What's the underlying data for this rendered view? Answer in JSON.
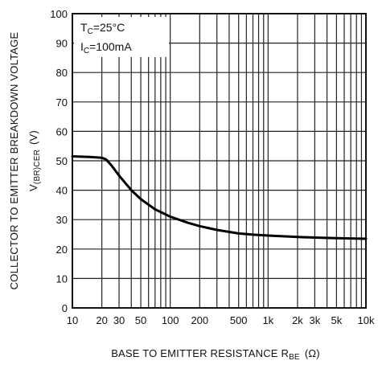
{
  "chart_data": {
    "type": "line",
    "x_scale": "log",
    "ylim": [
      0,
      100
    ],
    "xlim": [
      10,
      10000
    ],
    "grid": true,
    "xticks": [
      {
        "value": 10,
        "label": "10"
      },
      {
        "value": 20,
        "label": "20"
      },
      {
        "value": 30,
        "label": "30"
      },
      {
        "value": 50,
        "label": "50"
      },
      {
        "value": 100,
        "label": "100"
      },
      {
        "value": 200,
        "label": "200"
      },
      {
        "value": 500,
        "label": "500"
      },
      {
        "value": 1000,
        "label": "1k"
      },
      {
        "value": 2000,
        "label": "2k"
      },
      {
        "value": 3000,
        "label": "3k"
      },
      {
        "value": 5000,
        "label": "5k"
      },
      {
        "value": 10000,
        "label": "10k"
      }
    ],
    "x_grid": [
      10,
      20,
      30,
      40,
      50,
      60,
      70,
      80,
      90,
      100,
      200,
      300,
      400,
      500,
      600,
      700,
      800,
      900,
      1000,
      2000,
      3000,
      4000,
      5000,
      6000,
      7000,
      8000,
      9000,
      10000
    ],
    "yticks": [
      0,
      10,
      20,
      30,
      40,
      50,
      60,
      70,
      80,
      90,
      100
    ],
    "xlabel": "BASE TO EMITTER RESISTANCE R",
    "xlabel_sub": "BE",
    "xlabel_unit": "(Ω)",
    "ylabel_line1": "COLLECTOR TO EMITTER BREAKDOWN VOLTAGE",
    "ylabel_line2_main": "V",
    "ylabel_line2_sub": "(BR)CER",
    "ylabel_line2_unit": "(V)",
    "annotations": [
      {
        "main": "T",
        "sub": "C",
        "rest": "=25°C"
      },
      {
        "main": "I",
        "sub": "C",
        "rest": "=100mA"
      }
    ],
    "series": [
      {
        "x": [
          10,
          15,
          20,
          22,
          25,
          30,
          40,
          50,
          70,
          100,
          150,
          200,
          300,
          500,
          700,
          1000,
          2000,
          3000,
          5000,
          10000
        ],
        "y": [
          51.5,
          51.3,
          51.0,
          50.5,
          48.5,
          45,
          40,
          37,
          33.5,
          31,
          29,
          27.8,
          26.5,
          25.3,
          24.9,
          24.6,
          24.1,
          23.9,
          23.7,
          23.5
        ]
      }
    ]
  }
}
